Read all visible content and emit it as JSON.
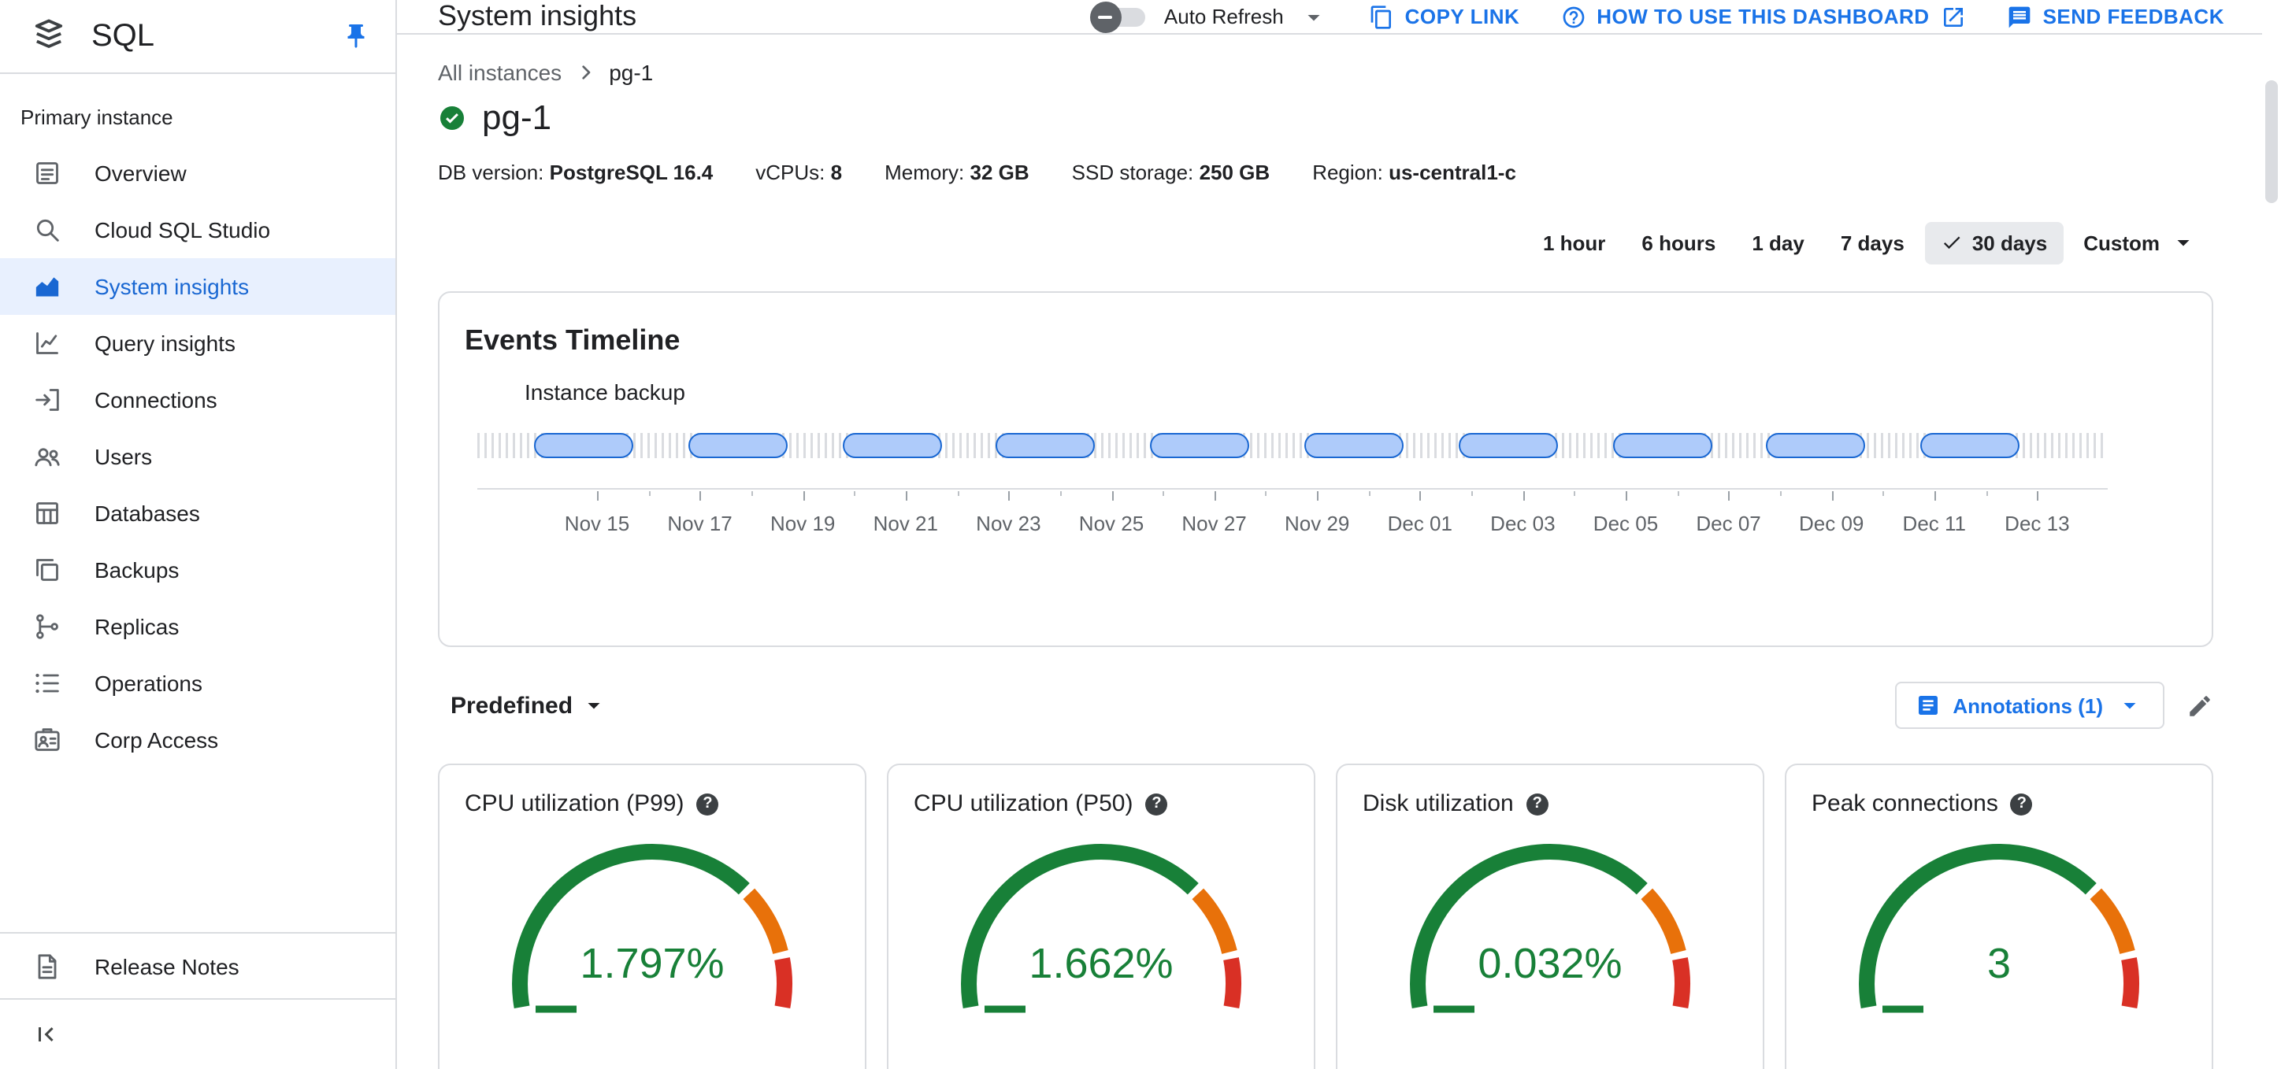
{
  "sidebar": {
    "logo_text": "SQL",
    "section_label": "Primary instance",
    "items": [
      {
        "label": "Overview",
        "icon": "overview",
        "selected": false
      },
      {
        "label": "Cloud SQL Studio",
        "icon": "studio",
        "selected": false
      },
      {
        "label": "System insights",
        "icon": "insights",
        "selected": true
      },
      {
        "label": "Query insights",
        "icon": "query",
        "selected": false
      },
      {
        "label": "Connections",
        "icon": "connections",
        "selected": false
      },
      {
        "label": "Users",
        "icon": "users",
        "selected": false
      },
      {
        "label": "Databases",
        "icon": "databases",
        "selected": false
      },
      {
        "label": "Backups",
        "icon": "backups",
        "selected": false
      },
      {
        "label": "Replicas",
        "icon": "replicas",
        "selected": false
      },
      {
        "label": "Operations",
        "icon": "operations",
        "selected": false
      },
      {
        "label": "Corp Access",
        "icon": "corp",
        "selected": false
      }
    ],
    "release_notes": "Release Notes"
  },
  "header": {
    "title": "System insights",
    "auto_refresh": "Auto Refresh",
    "copy_link": "COPY LINK",
    "how_to": "HOW TO USE THIS DASHBOARD",
    "send_feedback": "SEND FEEDBACK"
  },
  "instance": {
    "breadcrumb_root": "All instances",
    "name": "pg-1",
    "meta": [
      {
        "label": "DB version:",
        "value": "PostgreSQL 16.4"
      },
      {
        "label": "vCPUs:",
        "value": "8"
      },
      {
        "label": "Memory:",
        "value": "32 GB"
      },
      {
        "label": "SSD storage:",
        "value": "250 GB"
      },
      {
        "label": "Region:",
        "value": "us-central1-c"
      }
    ]
  },
  "time_range": {
    "options": [
      {
        "label": "1 hour",
        "selected": false,
        "caret": false
      },
      {
        "label": "6 hours",
        "selected": false,
        "caret": false
      },
      {
        "label": "1 day",
        "selected": false,
        "caret": false
      },
      {
        "label": "7 days",
        "selected": false,
        "caret": false
      },
      {
        "label": "30 days",
        "selected": true,
        "caret": false
      },
      {
        "label": "Custom",
        "selected": false,
        "caret": true
      }
    ]
  },
  "events_timeline": {
    "title": "Events Timeline",
    "series_label": "Instance backup",
    "backup_count": 10,
    "dates": [
      "Nov 15",
      "Nov 17",
      "Nov 19",
      "Nov 21",
      "Nov 23",
      "Nov 25",
      "Nov 27",
      "Nov 29",
      "Dec 01",
      "Dec 03",
      "Dec 05",
      "Dec 07",
      "Dec 09",
      "Dec 11",
      "Dec 13"
    ]
  },
  "controls": {
    "predefined": "Predefined",
    "annotations": "Annotations (1)"
  },
  "gauges": [
    {
      "title": "CPU utilization (P99)",
      "value": "1.797%"
    },
    {
      "title": "CPU utilization (P50)",
      "value": "1.662%"
    },
    {
      "title": "Disk utilization",
      "value": "0.032%"
    },
    {
      "title": "Peak connections",
      "value": "3"
    }
  ],
  "colors": {
    "accent_blue": "#1a73e8",
    "selected_bg": "#e8f0fe",
    "gauge_green": "#188038",
    "gauge_orange": "#e8710a",
    "gauge_red": "#d93025",
    "pill_fill": "#aecbfa",
    "pill_border": "#1967d2"
  }
}
